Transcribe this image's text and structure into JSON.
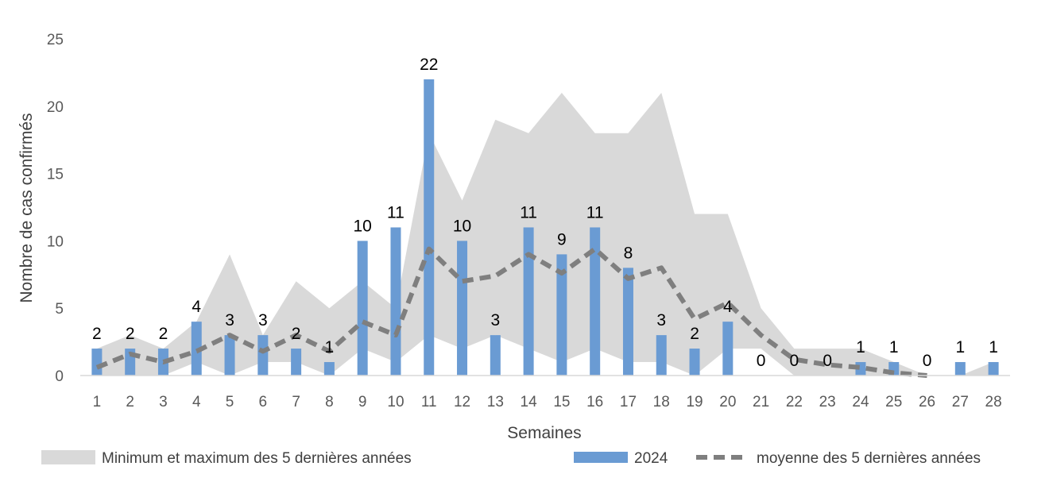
{
  "chart_data": {
    "type": "bar",
    "title": "",
    "xlabel": "Semaines",
    "ylabel": "Nombre de cas confirmés",
    "ylim": [
      0,
      25
    ],
    "yticks": [
      0,
      5,
      10,
      15,
      20,
      25
    ],
    "categories": [
      "1",
      "2",
      "3",
      "4",
      "5",
      "6",
      "7",
      "8",
      "9",
      "10",
      "11",
      "12",
      "13",
      "14",
      "15",
      "16",
      "17",
      "18",
      "19",
      "20",
      "21",
      "22",
      "23",
      "24",
      "25",
      "26",
      "27",
      "28"
    ],
    "legend_position": "bottom",
    "series": [
      {
        "name": "Minimum et maximum des 5 dernières années",
        "type": "area-band",
        "color": "#d9d9d9",
        "min": [
          0,
          0,
          0,
          1,
          0,
          1,
          1,
          0,
          2,
          1,
          3,
          2,
          3,
          2,
          1,
          2,
          1,
          1,
          0,
          2,
          2,
          0,
          0,
          0,
          0,
          0,
          0,
          0
        ],
        "max": [
          2,
          3,
          2,
          4,
          9,
          3,
          7,
          5,
          7,
          5,
          18,
          13,
          19,
          18,
          21,
          18,
          18,
          21,
          12,
          12,
          5,
          2,
          2,
          2,
          1,
          0,
          0,
          1
        ]
      },
      {
        "name": "2024",
        "type": "bar",
        "color": "#6a9bd3",
        "values": [
          2,
          2,
          2,
          4,
          3,
          3,
          2,
          1,
          10,
          11,
          22,
          10,
          3,
          11,
          9,
          11,
          8,
          3,
          2,
          4,
          0,
          0,
          0,
          1,
          1,
          0,
          1,
          1
        ]
      },
      {
        "name": "moyenne des 5 dernières années",
        "type": "line-dashed",
        "color": "#7f7f7f",
        "values": [
          0.6,
          1.6,
          1.0,
          1.8,
          3.0,
          1.8,
          3.0,
          1.8,
          4.0,
          3.0,
          9.4,
          7.0,
          7.4,
          9.0,
          7.6,
          9.4,
          7.2,
          8.0,
          4.2,
          5.4,
          3.0,
          1.2,
          0.8,
          0.6,
          0.2,
          0,
          null,
          null
        ]
      }
    ]
  }
}
